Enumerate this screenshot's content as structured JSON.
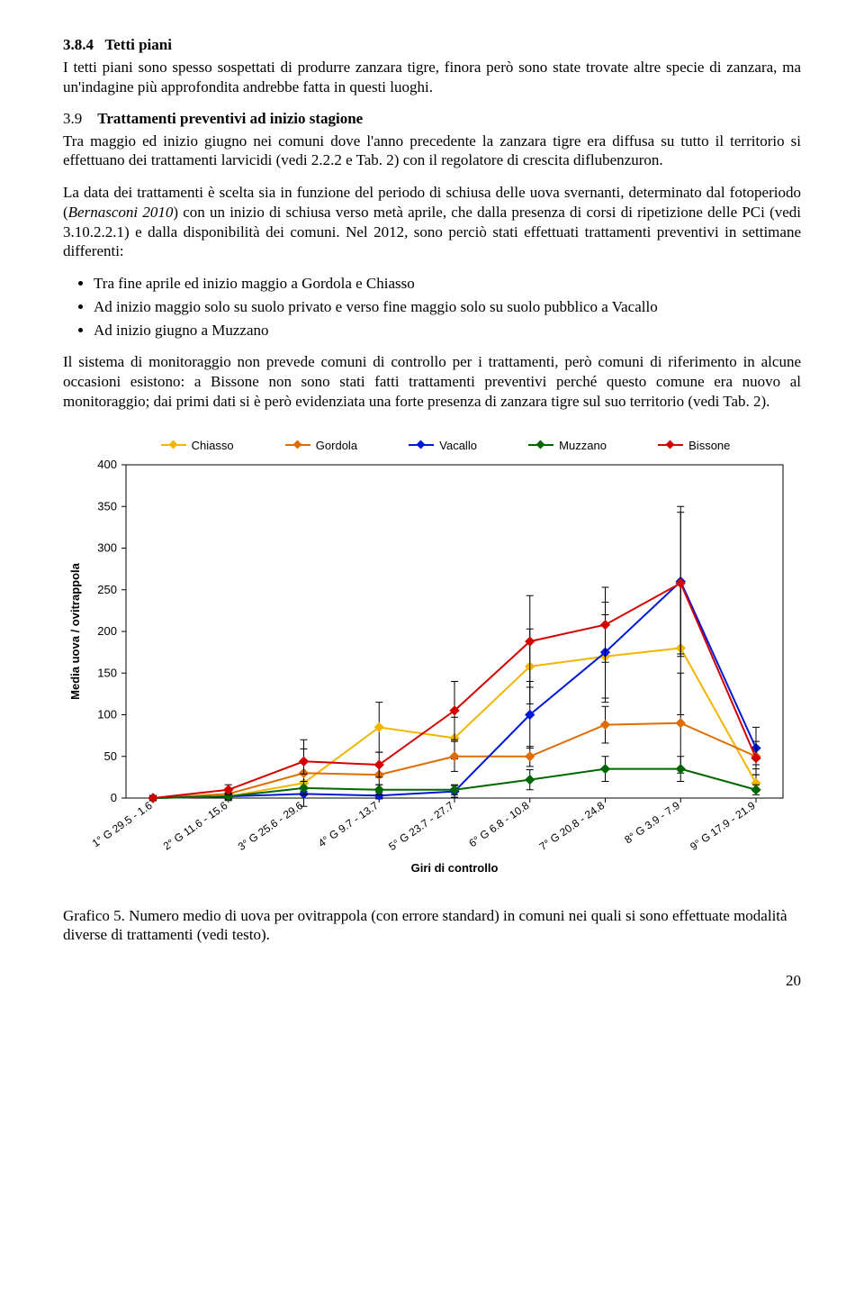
{
  "section1": {
    "number": "3.8.4",
    "title": "Tetti piani",
    "para": "I tetti piani sono spesso sospettati di produrre zanzara tigre, finora però sono state trovate altre specie di zanzara, ma un'indagine più approfondita andrebbe fatta in questi luoghi."
  },
  "section2": {
    "number": "3.9",
    "title": "Trattamenti preventivi ad inizio stagione",
    "para1": "Tra maggio ed inizio giugno nei comuni dove l'anno precedente la zanzara tigre era diffusa su tutto il territorio si effettuano dei trattamenti larvicidi (vedi 2.2.2 e Tab. 2) con il regolatore di crescita diflubenzuron.",
    "para2_pre": "La data dei trattamenti è scelta sia in funzione del periodo di schiusa delle uova svernanti, determinato dal fotoperiodo (",
    "para2_italic": "Bernasconi 2010",
    "para2_post": ") con un inizio di schiusa verso metà aprile, che dalla presenza di corsi di ripetizione delle PCi (vedi 3.10.2.2.1) e dalla disponibilità dei comuni. Nel 2012, sono perciò stati effettuati trattamenti preventivi in settimane differenti:",
    "bullets": [
      "Tra fine aprile ed inizio maggio a Gordola e Chiasso",
      "Ad inizio maggio solo su suolo privato e verso fine maggio solo su suolo pubblico a Vacallo",
      "Ad inizio giugno a Muzzano"
    ],
    "para3": "Il sistema di monitoraggio non prevede comuni di controllo per i trattamenti, però comuni di riferimento in alcune occasioni esistono: a Bissone non sono stati fatti trattamenti preventivi perché questo comune era nuovo al monitoraggio; dai primi dati si è però evidenziata una forte presenza di zanzara tigre sul suo territorio (vedi Tab. 2)."
  },
  "chart": {
    "type": "line",
    "ylabel": "Media uova / ovitrappola",
    "xlabel": "Giri di controllo",
    "ylim": [
      0,
      400
    ],
    "ytick_step": 50,
    "xticks": [
      "1° G 29.5 - 1.6",
      "2° G 11.6 - 15.6",
      "3° G 25.6 - 29.6",
      "4° G 9.7 - 13.7",
      "5° G 23.7 - 27.7",
      "6° G 6.8 - 10.8",
      "7° G 20.8 - 24.8",
      "8° G 3.9 - 7.9",
      "9° G 17.9 - 21.9"
    ],
    "series": [
      {
        "name": "Chiasso",
        "color": "#f2b600",
        "values": [
          0,
          2,
          18,
          85,
          72,
          158,
          170,
          180,
          18
        ],
        "err": [
          3,
          5,
          10,
          30,
          25,
          45,
          50,
          80,
          10
        ]
      },
      {
        "name": "Gordola",
        "color": "#e06c00",
        "values": [
          0,
          5,
          30,
          28,
          50,
          50,
          88,
          90,
          50
        ],
        "err": [
          3,
          6,
          40,
          12,
          18,
          12,
          22,
          60,
          10
        ]
      },
      {
        "name": "Vacallo",
        "color": "#0018d8",
        "values": [
          0,
          2,
          5,
          3,
          8,
          100,
          175,
          260,
          60
        ],
        "err": [
          2,
          4,
          5,
          4,
          7,
          40,
          60,
          90,
          25
        ]
      },
      {
        "name": "Muzzano",
        "color": "#006600",
        "values": [
          0,
          2,
          12,
          10,
          10,
          22,
          35,
          35,
          10
        ],
        "err": [
          2,
          3,
          8,
          6,
          6,
          12,
          15,
          15,
          6
        ]
      },
      {
        "name": "Bissone",
        "color": "#d30000",
        "values": [
          0,
          10,
          44,
          40,
          105,
          188,
          208,
          258,
          48
        ],
        "err": [
          3,
          6,
          15,
          15,
          35,
          55,
          45,
          85,
          20
        ]
      }
    ],
    "background_color": "#ffffff",
    "axis_color": "#000000",
    "tick_font": "Arial",
    "tick_fontsize": 13
  },
  "caption": "Grafico 5. Numero medio di uova per ovitrappola (con errore standard) in comuni nei quali si sono effettuate modalità diverse di trattamenti (vedi testo).",
  "pagenum": "20"
}
